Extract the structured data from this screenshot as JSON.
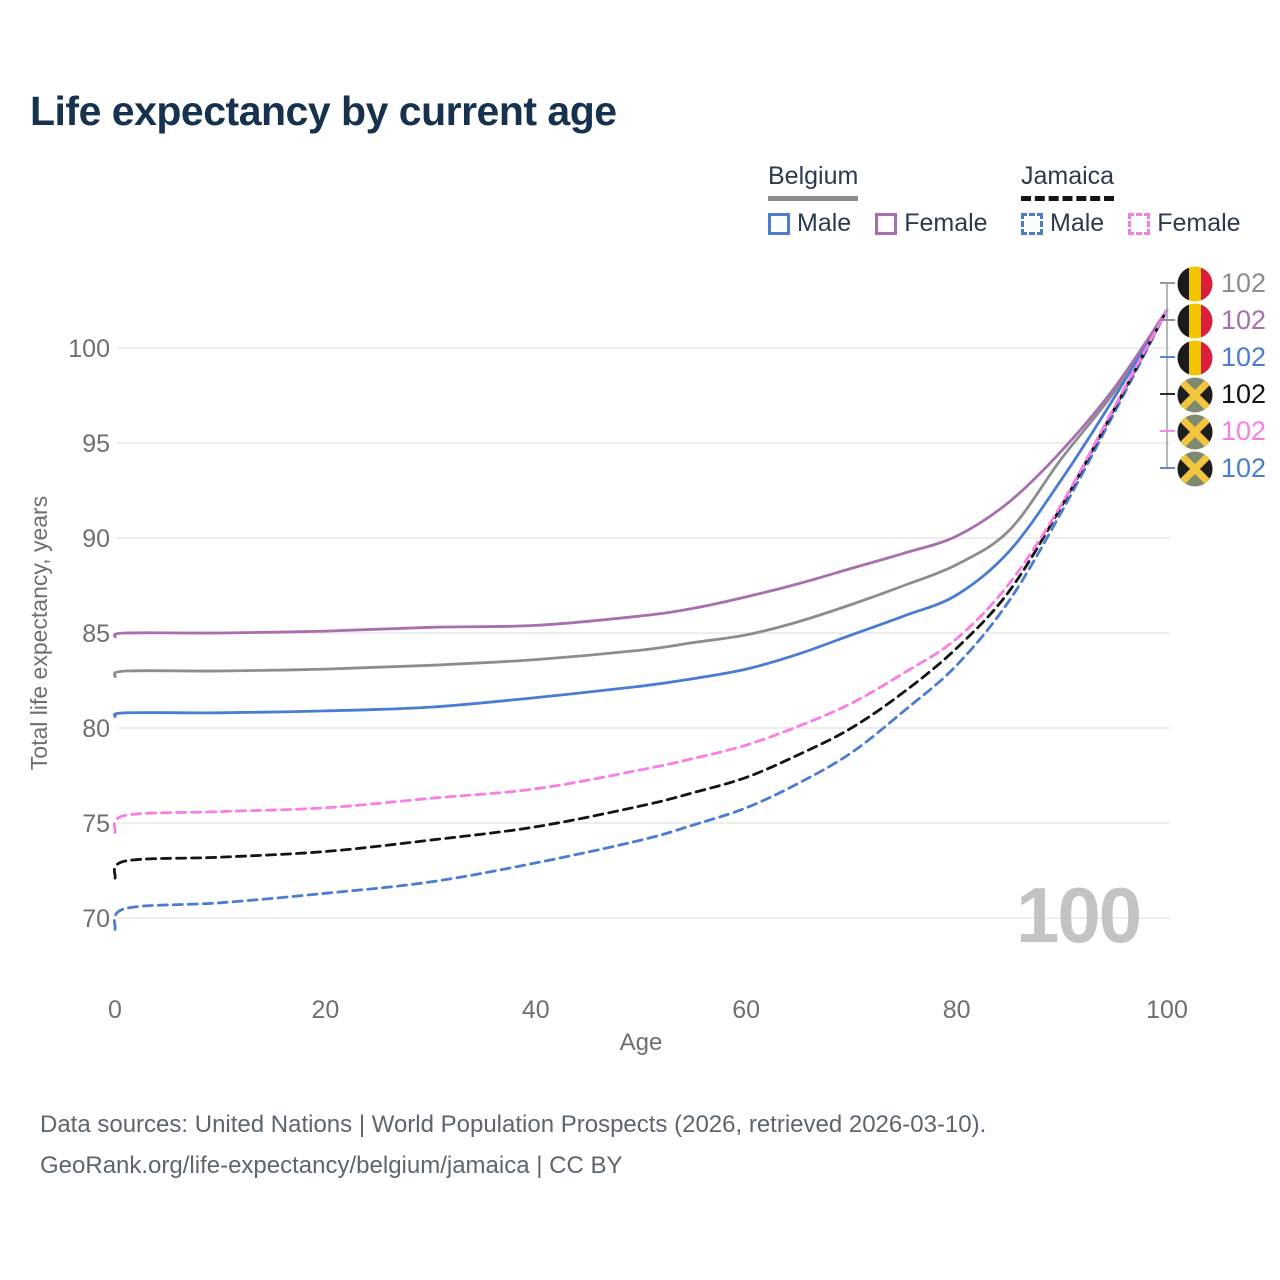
{
  "title": "Life expectancy by current age",
  "legend": {
    "groups": [
      {
        "country": "Belgium",
        "line_style": "solid",
        "underline_color": "#8d8d8d",
        "items": [
          {
            "label": "Male",
            "color": "#4a7cd2"
          },
          {
            "label": "Female",
            "color": "#a86fae"
          }
        ]
      },
      {
        "country": "Jamaica",
        "line_style": "dashed",
        "underline_color": "#141414",
        "items": [
          {
            "label": "Male",
            "color": "#4a7cd2"
          },
          {
            "label": "Female",
            "color": "#fa7de4"
          }
        ]
      }
    ]
  },
  "watermark_age": "100",
  "callouts": [
    {
      "flag": "belgium",
      "value": "102",
      "color": "#8d8d8d"
    },
    {
      "flag": "belgium",
      "value": "102",
      "color": "#a86fae"
    },
    {
      "flag": "belgium",
      "value": "102",
      "color": "#4a7cd2"
    },
    {
      "flag": "jamaica",
      "value": "102",
      "color": "#141414"
    },
    {
      "flag": "jamaica",
      "value": "102",
      "color": "#fa7de4"
    },
    {
      "flag": "jamaica",
      "value": "102",
      "color": "#4a7cd2"
    }
  ],
  "footer": {
    "line1": "Data sources: United Nations | World Population Prospects (2026, retrieved 2026-03-10).",
    "line2": "GeoRank.org/life-expectancy/belgium/jamaica | CC BY"
  },
  "chart_data": {
    "type": "line",
    "title": "Life expectancy by current age",
    "xlabel": "Age",
    "ylabel": "Total life expectancy, years",
    "xlim": [
      0,
      100
    ],
    "ylim": [
      68,
      103
    ],
    "xticks": [
      0,
      20,
      40,
      60,
      80,
      100
    ],
    "yticks": [
      70,
      75,
      80,
      85,
      90,
      95,
      100
    ],
    "grid": "horizontal",
    "legend_position": "top-right",
    "x": [
      0,
      1,
      10,
      20,
      30,
      40,
      50,
      55,
      60,
      65,
      70,
      75,
      80,
      85,
      90,
      95,
      100
    ],
    "series": [
      {
        "name": "Belgium Both sexes",
        "color": "#8d8d8d",
        "dash": "solid",
        "values": [
          82.7,
          83.0,
          83.0,
          83.1,
          83.3,
          83.6,
          84.1,
          84.5,
          84.9,
          85.6,
          86.5,
          87.5,
          88.6,
          90.4,
          94.2,
          97.7,
          102
        ]
      },
      {
        "name": "Belgium Male",
        "color": "#4a7cd2",
        "dash": "solid",
        "values": [
          80.6,
          80.8,
          80.8,
          80.9,
          81.1,
          81.6,
          82.2,
          82.6,
          83.1,
          83.9,
          84.9,
          85.9,
          87.0,
          89.3,
          93.1,
          97.4,
          102
        ]
      },
      {
        "name": "Belgium Female",
        "color": "#a86fae",
        "dash": "solid",
        "values": [
          84.8,
          85.0,
          85.0,
          85.1,
          85.3,
          85.4,
          85.9,
          86.3,
          86.9,
          87.6,
          88.4,
          89.2,
          90.1,
          91.9,
          94.6,
          97.9,
          102
        ]
      },
      {
        "name": "Jamaica Male",
        "color": "#4a7cd2",
        "dash": "dashed",
        "values": [
          69.4,
          70.5,
          70.8,
          71.3,
          71.9,
          72.9,
          74.1,
          74.9,
          75.8,
          77.1,
          78.7,
          80.9,
          83.3,
          86.7,
          91.4,
          96.6,
          102
        ]
      },
      {
        "name": "Jamaica Both sexes",
        "color": "#141414",
        "dash": "dashed",
        "values": [
          72.1,
          73.0,
          73.2,
          73.5,
          74.1,
          74.8,
          75.9,
          76.6,
          77.4,
          78.6,
          80.0,
          81.9,
          84.2,
          87.2,
          91.7,
          96.8,
          102
        ]
      },
      {
        "name": "Jamaica Female",
        "color": "#fa7de4",
        "dash": "dashed",
        "values": [
          74.5,
          75.4,
          75.6,
          75.8,
          76.3,
          76.8,
          77.8,
          78.4,
          79.1,
          80.1,
          81.3,
          82.9,
          84.7,
          87.6,
          91.8,
          96.9,
          102
        ]
      }
    ],
    "end_value_labels": "102",
    "annotations": {
      "current_age_watermark": "100"
    }
  }
}
